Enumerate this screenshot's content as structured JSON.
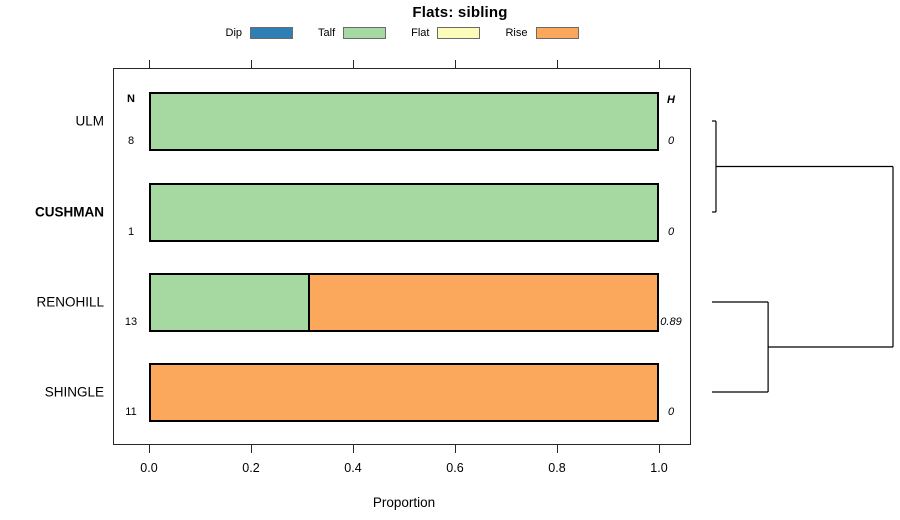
{
  "title": "Flats: sibling",
  "legend": {
    "items": [
      {
        "label": "Dip",
        "color": "#2E7FB4"
      },
      {
        "label": "Talf",
        "color": "#A5D9A1"
      },
      {
        "label": "Flat",
        "color": "#FBFBBA"
      },
      {
        "label": "Rise",
        "color": "#FBA75C"
      }
    ]
  },
  "columns": {
    "n_header": "N",
    "h_header": "H"
  },
  "axis": {
    "label": "Proportion",
    "tick_labels": [
      "0.0",
      "0.2",
      "0.4",
      "0.6",
      "0.8",
      "1.0"
    ]
  },
  "chart_data": {
    "type": "bar",
    "subtype": "stacked-horizontal-proportion",
    "title": "Flats: sibling",
    "xlabel": "Proportion",
    "xlim": [
      0,
      1
    ],
    "xticks": [
      0.0,
      0.2,
      0.4,
      0.6,
      0.8,
      1.0
    ],
    "grid": false,
    "legend_position": "top",
    "categories": [
      "ULM",
      "CUSHMAN",
      "RENOHILL",
      "SHINGLE"
    ],
    "bold_labels": [
      "CUSHMAN"
    ],
    "series": [
      {
        "name": "Dip",
        "color": "#2E7FB4",
        "values": [
          0,
          0,
          0,
          0
        ]
      },
      {
        "name": "Talf",
        "color": "#A5D9A1",
        "values": [
          1.0,
          1.0,
          0.31,
          0
        ]
      },
      {
        "name": "Flat",
        "color": "#FBFBBA",
        "values": [
          0,
          0,
          0,
          0
        ]
      },
      {
        "name": "Rise",
        "color": "#FBA75C",
        "values": [
          0,
          0,
          0.69,
          1.0
        ]
      }
    ],
    "N": [
      8,
      1,
      13,
      11
    ],
    "H": [
      0,
      0,
      0.89,
      0
    ],
    "dendrogram": {
      "orientation": "right",
      "merges": [
        {
          "leaves": [
            "ULM",
            "CUSHMAN"
          ],
          "relative_height": 0.022
        },
        {
          "leaves": [
            "RENOHILL",
            "SHINGLE"
          ],
          "relative_height": 0.31
        },
        {
          "joins": [
            "merge-0",
            "merge-1"
          ],
          "relative_height": 1.0
        }
      ]
    }
  }
}
